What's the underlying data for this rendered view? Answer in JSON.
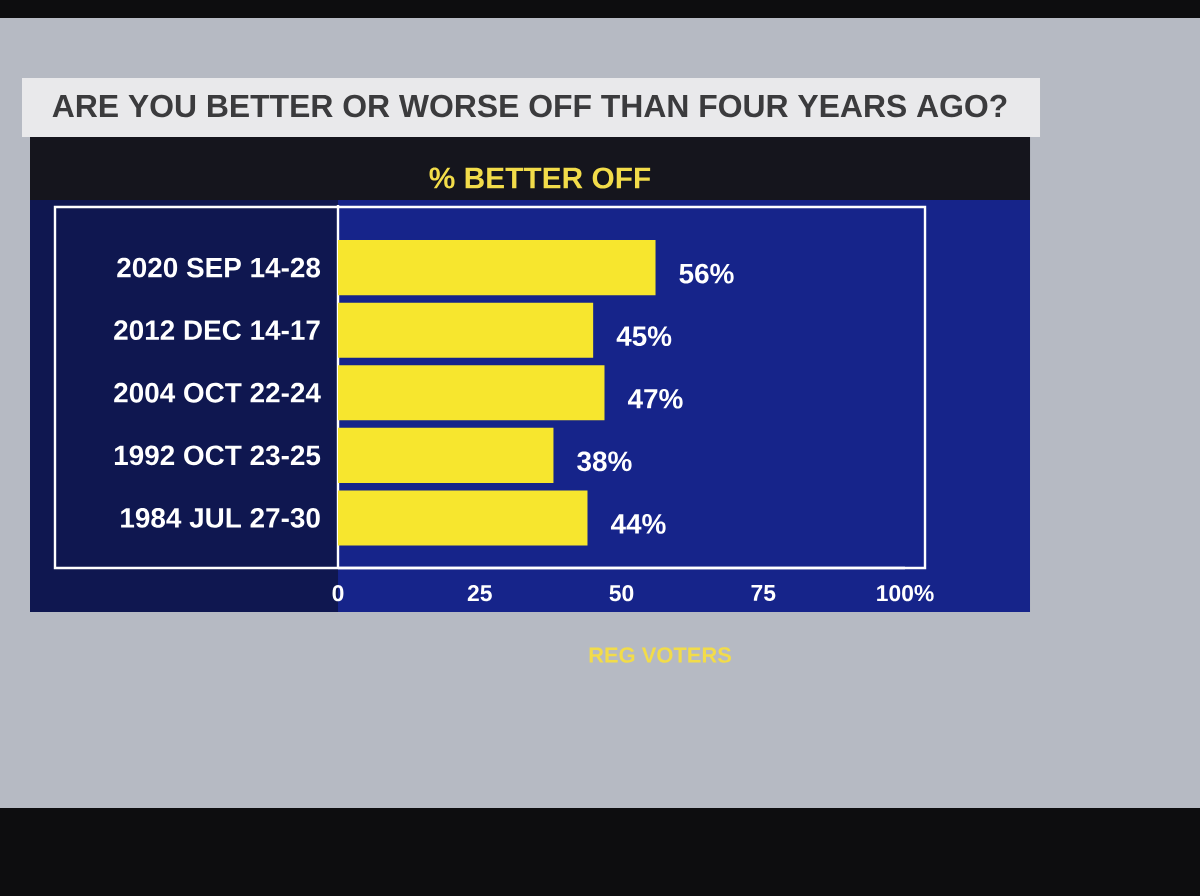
{
  "chart_data": {
    "type": "bar",
    "orientation": "horizontal",
    "title": "ARE YOU BETTER OR WORSE OFF THAN FOUR YEARS AGO?",
    "subtitle": "% BETTER OFF",
    "categories": [
      "2020 SEP 14-28",
      "2012 DEC 14-17",
      "2004 OCT 22-24",
      "1992 OCT 23-25",
      "1984 JUL 27-30"
    ],
    "values": [
      56,
      45,
      47,
      38,
      44
    ],
    "value_labels": [
      "56%",
      "45%",
      "47%",
      "38%",
      "44%"
    ],
    "color": "#f7e62e",
    "xlim": [
      0,
      100
    ],
    "xticks": [
      0,
      25,
      50,
      75,
      {
        "value": 100,
        "label": "100%"
      }
    ],
    "annotations": [
      "REG VOTERS"
    ]
  }
}
